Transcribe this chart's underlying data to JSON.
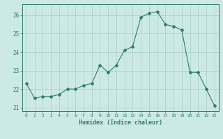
{
  "x": [
    0,
    1,
    2,
    3,
    4,
    5,
    6,
    7,
    8,
    9,
    10,
    11,
    12,
    13,
    14,
    15,
    16,
    17,
    18,
    19,
    20,
    21,
    22,
    23
  ],
  "y": [
    22.3,
    21.5,
    21.6,
    21.6,
    21.7,
    22.0,
    22.0,
    22.2,
    22.3,
    23.3,
    22.9,
    23.3,
    24.1,
    24.3,
    25.9,
    26.1,
    26.2,
    25.5,
    25.4,
    25.2,
    22.9,
    22.9,
    22.0,
    21.1
  ],
  "line_color": "#2e7d6e",
  "marker": "D",
  "marker_size": 2,
  "bg_color": "#cce9e5",
  "grid_color": "#aacfcc",
  "xlabel": "Humidex (Indice chaleur)",
  "xlim": [
    -0.5,
    23.5
  ],
  "ylim": [
    20.8,
    26.6
  ],
  "yticks": [
    21,
    22,
    23,
    24,
    25,
    26
  ],
  "xtick_labels": [
    "0",
    "1",
    "2",
    "3",
    "4",
    "5",
    "6",
    "7",
    "8",
    "9",
    "10",
    "11",
    "12",
    "13",
    "14",
    "15",
    "16",
    "17",
    "18",
    "19",
    "20",
    "21",
    "22",
    "23"
  ],
  "tick_color": "#2e7d6e",
  "axis_color": "#2e7d6e"
}
